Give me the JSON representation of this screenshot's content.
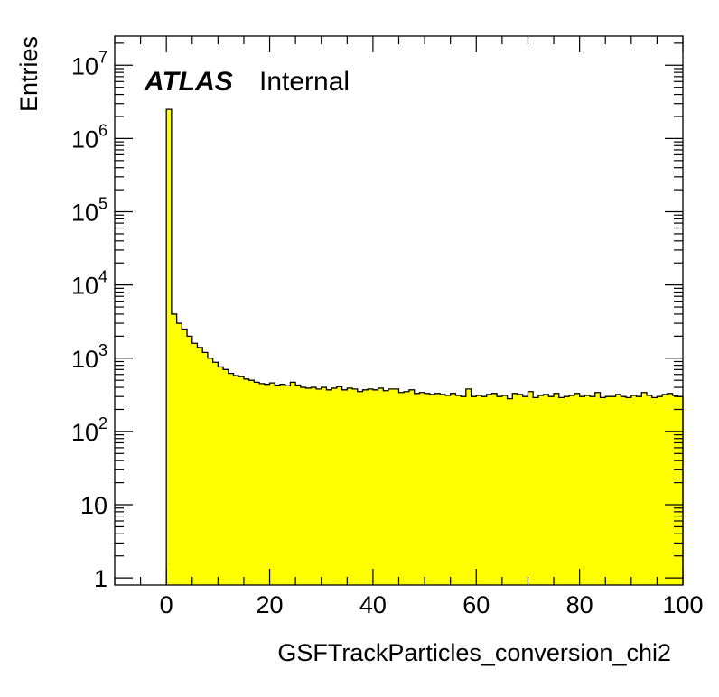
{
  "chart_data": {
    "type": "histogram",
    "title": "",
    "label_bold": "ATLAS",
    "label_text": "Internal",
    "xlabel": "GSFTrackParticles_conversion_chi2",
    "ylabel": "Entries",
    "xlim": [
      -10,
      100
    ],
    "ylim": [
      0.8,
      25000000
    ],
    "y_scale": "log",
    "x_ticks": [
      0,
      20,
      40,
      60,
      80,
      100
    ],
    "y_ticks": [
      {
        "value": 1,
        "mant": "1",
        "exp": ""
      },
      {
        "value": 10,
        "mant": "10",
        "exp": ""
      },
      {
        "value": 100,
        "mant": "10",
        "exp": "2"
      },
      {
        "value": 1000,
        "mant": "10",
        "exp": "3"
      },
      {
        "value": 10000,
        "mant": "10",
        "exp": "4"
      },
      {
        "value": 100000,
        "mant": "10",
        "exp": "5"
      },
      {
        "value": 1000000,
        "mant": "10",
        "exp": "6"
      },
      {
        "value": 10000000,
        "mant": "10",
        "exp": "7"
      }
    ],
    "fill_color": "#ffff00",
    "line_color": "#000000",
    "bin_start": 0,
    "bin_width": 1,
    "values": [
      2500000,
      4000,
      3000,
      2500,
      2000,
      1600,
      1400,
      1200,
      1000,
      880,
      760,
      700,
      620,
      580,
      560,
      520,
      500,
      470,
      450,
      440,
      460,
      430,
      440,
      420,
      470,
      430,
      400,
      390,
      400,
      380,
      400,
      370,
      390,
      410,
      370,
      390,
      380,
      350,
      370,
      380,
      370,
      390,
      360,
      380,
      380,
      340,
      350,
      370,
      330,
      340,
      330,
      320,
      330,
      320,
      310,
      330,
      310,
      300,
      380,
      300,
      310,
      300,
      320,
      330,
      300,
      310,
      280,
      330,
      320,
      300,
      350,
      290,
      310,
      320,
      300,
      330,
      290,
      300,
      310,
      330,
      300,
      310,
      300,
      340,
      290,
      300,
      300,
      320,
      300,
      290,
      310,
      300,
      340,
      310,
      290,
      300,
      320,
      330,
      310,
      300
    ]
  }
}
